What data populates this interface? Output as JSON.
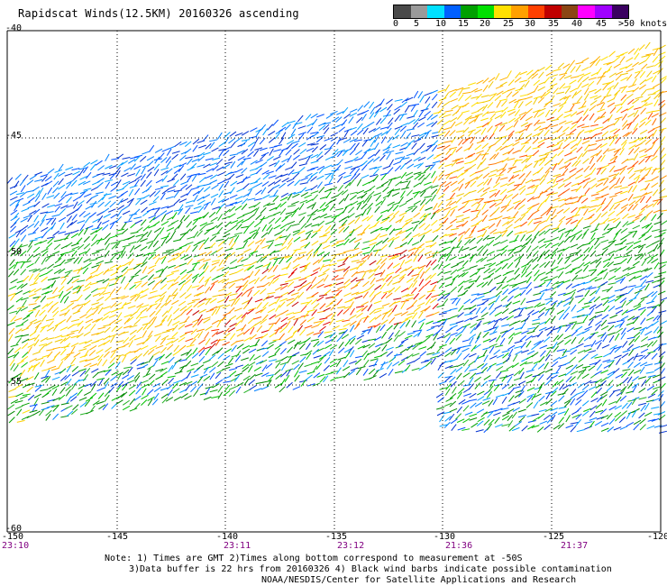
{
  "title": "Rapidscat Winds(12.5KM) 20160326 ascending",
  "colorbar": {
    "labels": [
      "0",
      "5",
      "10",
      "15",
      "20",
      "25",
      "30",
      "35",
      "40",
      "45",
      ">50 knots"
    ],
    "colors": [
      "#4a4a4a",
      "#9a9a9a",
      "#00e0ff",
      "#0060ff",
      "#00a000",
      "#00e000",
      "#ffe000",
      "#ffa000",
      "#ff4000",
      "#c00000",
      "#8b4513",
      "#ff00ff",
      "#a000ff",
      "#3a0060"
    ]
  },
  "map": {
    "lon_labels": [
      "-150",
      "-145",
      "-140",
      "-135",
      "-130",
      "-125",
      "-120"
    ],
    "lat_labels": [
      "-40",
      "-45",
      "-50",
      "-55",
      "-60"
    ],
    "times": [
      "23:10",
      "23:11",
      "23:12",
      "21:36",
      "21:37"
    ]
  },
  "notes": {
    "line1": "Note: 1) Times are GMT 2)Times along bottom correspond to measurement at -50S",
    "line2": "3)Data buffer is 22 hrs from 20160326 4) Black wind barbs indicate possible contamination",
    "line3": "NOAA/NESDIS/Center for Satellite Applications and Research"
  }
}
